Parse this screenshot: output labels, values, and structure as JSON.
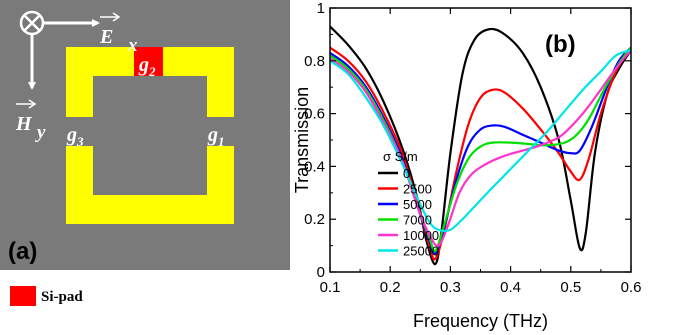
{
  "panel_a": {
    "label": "(a)",
    "e_field": "E",
    "e_sub": "x",
    "h_field": "H",
    "h_sub": "y",
    "gap1": "g",
    "gap1_sub": "1",
    "gap2": "g",
    "gap2_sub": "2",
    "gap3": "g",
    "gap3_sub": "3",
    "legend_label": "Si-pad",
    "colors": {
      "background": "#7a7a7a",
      "ring": "#ffff00",
      "si_pad": "#ff0000",
      "text": "#ffffff"
    }
  },
  "chart_data": {
    "type": "line",
    "panel_label": "(b)",
    "xlabel": "Frequency (THz)",
    "ylabel": "Transmission",
    "xlim": [
      0.1,
      0.6
    ],
    "ylim": [
      0,
      1
    ],
    "xticks": [
      "0.1",
      "0.2",
      "0.3",
      "0.4",
      "0.5",
      "0.6"
    ],
    "yticks": [
      "0",
      "0.2",
      "0.4",
      "0.6",
      "0.8",
      "1"
    ],
    "legend_title": "σ S/m",
    "legend_position": "left-center",
    "grid": false,
    "series": [
      {
        "name": "0",
        "color": "#000000",
        "points": [
          [
            0.1,
            0.93
          ],
          [
            0.13,
            0.86
          ],
          [
            0.16,
            0.77
          ],
          [
            0.19,
            0.64
          ],
          [
            0.22,
            0.47
          ],
          [
            0.245,
            0.28
          ],
          [
            0.26,
            0.12
          ],
          [
            0.275,
            0.03
          ],
          [
            0.285,
            0.15
          ],
          [
            0.3,
            0.45
          ],
          [
            0.32,
            0.75
          ],
          [
            0.34,
            0.88
          ],
          [
            0.365,
            0.92
          ],
          [
            0.39,
            0.9
          ],
          [
            0.42,
            0.83
          ],
          [
            0.45,
            0.7
          ],
          [
            0.48,
            0.5
          ],
          [
            0.5,
            0.27
          ],
          [
            0.515,
            0.09
          ],
          [
            0.525,
            0.15
          ],
          [
            0.54,
            0.45
          ],
          [
            0.56,
            0.67
          ],
          [
            0.58,
            0.77
          ],
          [
            0.6,
            0.84
          ]
        ]
      },
      {
        "name": "2500",
        "color": "#ff0000",
        "points": [
          [
            0.1,
            0.85
          ],
          [
            0.13,
            0.8
          ],
          [
            0.16,
            0.72
          ],
          [
            0.19,
            0.6
          ],
          [
            0.22,
            0.45
          ],
          [
            0.245,
            0.26
          ],
          [
            0.265,
            0.1
          ],
          [
            0.275,
            0.05
          ],
          [
            0.29,
            0.16
          ],
          [
            0.31,
            0.38
          ],
          [
            0.33,
            0.56
          ],
          [
            0.35,
            0.66
          ],
          [
            0.37,
            0.69
          ],
          [
            0.39,
            0.68
          ],
          [
            0.42,
            0.62
          ],
          [
            0.45,
            0.54
          ],
          [
            0.48,
            0.45
          ],
          [
            0.5,
            0.38
          ],
          [
            0.515,
            0.35
          ],
          [
            0.53,
            0.43
          ],
          [
            0.55,
            0.6
          ],
          [
            0.575,
            0.76
          ],
          [
            0.6,
            0.85
          ]
        ]
      },
      {
        "name": "5000",
        "color": "#0000ff",
        "points": [
          [
            0.1,
            0.83
          ],
          [
            0.13,
            0.78
          ],
          [
            0.16,
            0.7
          ],
          [
            0.19,
            0.58
          ],
          [
            0.22,
            0.43
          ],
          [
            0.245,
            0.25
          ],
          [
            0.265,
            0.12
          ],
          [
            0.275,
            0.07
          ],
          [
            0.29,
            0.17
          ],
          [
            0.31,
            0.35
          ],
          [
            0.33,
            0.48
          ],
          [
            0.35,
            0.54
          ],
          [
            0.37,
            0.555
          ],
          [
            0.39,
            0.55
          ],
          [
            0.42,
            0.52
          ],
          [
            0.45,
            0.49
          ],
          [
            0.48,
            0.46
          ],
          [
            0.5,
            0.45
          ],
          [
            0.515,
            0.46
          ],
          [
            0.535,
            0.55
          ],
          [
            0.56,
            0.7
          ],
          [
            0.58,
            0.8
          ],
          [
            0.6,
            0.85
          ]
        ]
      },
      {
        "name": "7000",
        "color": "#00e000",
        "points": [
          [
            0.1,
            0.82
          ],
          [
            0.13,
            0.77
          ],
          [
            0.16,
            0.69
          ],
          [
            0.19,
            0.57
          ],
          [
            0.22,
            0.42
          ],
          [
            0.245,
            0.25
          ],
          [
            0.265,
            0.13
          ],
          [
            0.275,
            0.08
          ],
          [
            0.29,
            0.18
          ],
          [
            0.31,
            0.33
          ],
          [
            0.33,
            0.43
          ],
          [
            0.35,
            0.475
          ],
          [
            0.37,
            0.49
          ],
          [
            0.4,
            0.49
          ],
          [
            0.43,
            0.485
          ],
          [
            0.46,
            0.48
          ],
          [
            0.49,
            0.49
          ],
          [
            0.51,
            0.52
          ],
          [
            0.53,
            0.58
          ],
          [
            0.555,
            0.69
          ],
          [
            0.58,
            0.79
          ],
          [
            0.6,
            0.85
          ]
        ]
      },
      {
        "name": "10000",
        "color": "#ff33cc",
        "points": [
          [
            0.1,
            0.81
          ],
          [
            0.13,
            0.76
          ],
          [
            0.16,
            0.68
          ],
          [
            0.19,
            0.56
          ],
          [
            0.22,
            0.42
          ],
          [
            0.245,
            0.25
          ],
          [
            0.265,
            0.14
          ],
          [
            0.28,
            0.1
          ],
          [
            0.295,
            0.17
          ],
          [
            0.315,
            0.3
          ],
          [
            0.335,
            0.37
          ],
          [
            0.36,
            0.41
          ],
          [
            0.39,
            0.44
          ],
          [
            0.42,
            0.46
          ],
          [
            0.45,
            0.48
          ],
          [
            0.48,
            0.51
          ],
          [
            0.5,
            0.55
          ],
          [
            0.52,
            0.6
          ],
          [
            0.54,
            0.66
          ],
          [
            0.565,
            0.74
          ],
          [
            0.585,
            0.8
          ],
          [
            0.6,
            0.84
          ]
        ]
      },
      {
        "name": "25000",
        "color": "#00e5e5",
        "points": [
          [
            0.1,
            0.8
          ],
          [
            0.13,
            0.75
          ],
          [
            0.16,
            0.66
          ],
          [
            0.19,
            0.55
          ],
          [
            0.22,
            0.41
          ],
          [
            0.245,
            0.28
          ],
          [
            0.265,
            0.19
          ],
          [
            0.28,
            0.16
          ],
          [
            0.3,
            0.16
          ],
          [
            0.32,
            0.2
          ],
          [
            0.345,
            0.26
          ],
          [
            0.37,
            0.32
          ],
          [
            0.4,
            0.39
          ],
          [
            0.43,
            0.46
          ],
          [
            0.46,
            0.53
          ],
          [
            0.49,
            0.61
          ],
          [
            0.52,
            0.69
          ],
          [
            0.55,
            0.76
          ],
          [
            0.575,
            0.82
          ],
          [
            0.6,
            0.84
          ]
        ]
      }
    ]
  }
}
